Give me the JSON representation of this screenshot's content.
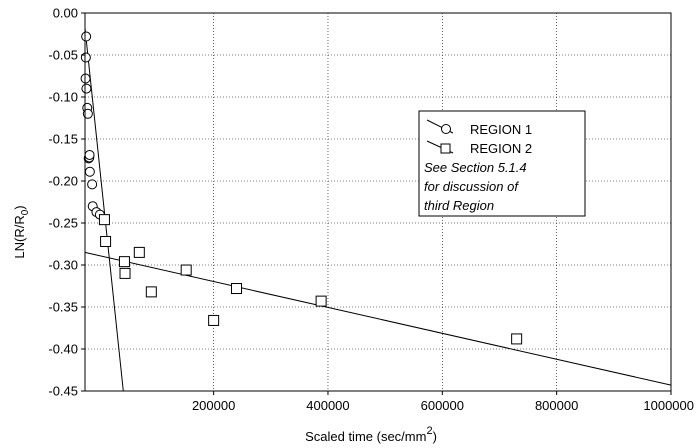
{
  "chart_data": {
    "type": "scatter",
    "xlabel": "Scaled time (sec/mm",
    "xlabel_sup": "2",
    "xlabel_close": ")",
    "ylabel": "LN(R/R",
    "ylabel_sub": "0",
    "ylabel_close": ")",
    "xlim": [
      -25000,
      1000000
    ],
    "ylim": [
      -0.45,
      0.0
    ],
    "x_ticks": [
      200000,
      400000,
      600000,
      800000,
      1000000
    ],
    "x_tick_labels": [
      "200000",
      "400000",
      "600000",
      "800000",
      "1000000"
    ],
    "y_ticks": [
      0.0,
      -0.05,
      -0.1,
      -0.15,
      -0.2,
      -0.25,
      -0.3,
      -0.35,
      -0.4,
      -0.45
    ],
    "y_tick_labels": [
      "0.00",
      "-0.05",
      "-0.10",
      "-0.15",
      "-0.20",
      "-0.25",
      "-0.30",
      "-0.35",
      "-0.40",
      "-0.45"
    ],
    "grid": true,
    "legend_position": "upper-right",
    "series": [
      {
        "name": "REGION 1",
        "marker": "circle",
        "points": [
          [
            -23000,
            -0.028
          ],
          [
            -23500,
            -0.053
          ],
          [
            -24000,
            -0.078
          ],
          [
            -22500,
            -0.09
          ],
          [
            -21000,
            -0.113
          ],
          [
            -20000,
            -0.12
          ],
          [
            -18500,
            -0.173
          ],
          [
            -17500,
            -0.172
          ],
          [
            -17000,
            -0.169
          ],
          [
            -16500,
            -0.189
          ],
          [
            -12500,
            -0.204
          ],
          [
            -11500,
            -0.23
          ],
          [
            -5000,
            -0.237
          ],
          [
            1000,
            -0.24
          ]
        ],
        "fit_line": [
          [
            -25000,
            -0.018
          ],
          [
            42000,
            -0.45
          ]
        ]
      },
      {
        "name": "REGION 2",
        "marker": "square",
        "points": [
          [
            9000,
            -0.246
          ],
          [
            11000,
            -0.272
          ],
          [
            44000,
            -0.296
          ],
          [
            45000,
            -0.31
          ],
          [
            70000,
            -0.285
          ],
          [
            91000,
            -0.332
          ],
          [
            152000,
            -0.306
          ],
          [
            200000,
            -0.366
          ],
          [
            240000,
            -0.328
          ],
          [
            388000,
            -0.343
          ],
          [
            730000,
            -0.388
          ]
        ],
        "fit_line": [
          [
            -25000,
            -0.285
          ],
          [
            1000000,
            -0.443
          ]
        ]
      }
    ],
    "annotation": [
      "See Section 5.1.4",
      "for discussion of",
      "third Region"
    ]
  }
}
